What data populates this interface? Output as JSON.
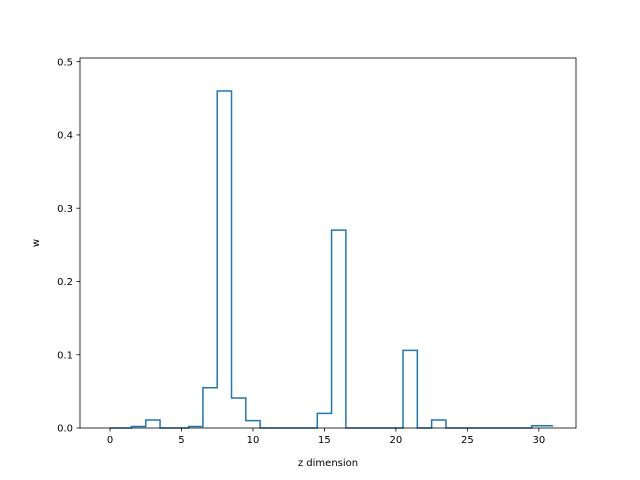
{
  "chart_data": {
    "type": "step",
    "xlabel": "z dimension",
    "ylabel": "w",
    "xlim": [
      -2.1,
      32.6
    ],
    "ylim": [
      0,
      0.505
    ],
    "xticks": [
      0,
      5,
      10,
      15,
      20,
      25,
      30
    ],
    "yticks": [
      0.0,
      0.1,
      0.2,
      0.3,
      0.4,
      0.5
    ],
    "ytick_labels": [
      "0.0",
      "0.1",
      "0.2",
      "0.3",
      "0.4",
      "0.5"
    ],
    "line_color": "#1f77b4",
    "x": [
      0,
      1,
      2,
      3,
      4,
      5,
      6,
      7,
      8,
      9,
      10,
      11,
      12,
      13,
      14,
      15,
      16,
      17,
      18,
      19,
      20,
      21,
      22,
      23,
      24,
      25,
      26,
      27,
      28,
      29,
      30,
      31
    ],
    "values": [
      0.0,
      0.0,
      0.002,
      0.011,
      0.0,
      0.0,
      0.002,
      0.055,
      0.46,
      0.041,
      0.01,
      0.0,
      0.0,
      0.0,
      0.0,
      0.02,
      0.27,
      0.0,
      0.0,
      0.0,
      0.0,
      0.106,
      0.0,
      0.011,
      0.0,
      0.0,
      0.0,
      0.0,
      0.0,
      0.0,
      0.003,
      0.003
    ]
  }
}
